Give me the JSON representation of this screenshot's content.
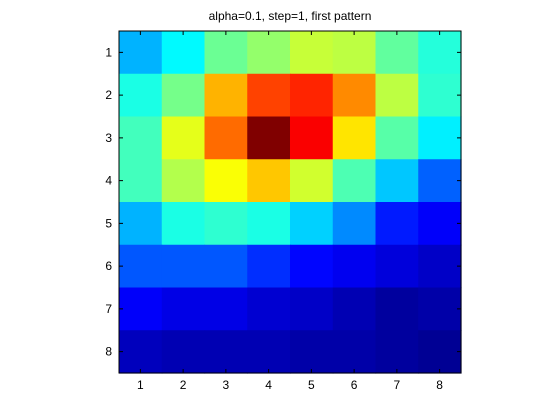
{
  "chart_data": {
    "type": "heatmap",
    "title": "alpha=0.1, step=1, first pattern",
    "xlabel": "",
    "ylabel": "",
    "x_categories": [
      "1",
      "2",
      "3",
      "4",
      "5",
      "6",
      "7",
      "8"
    ],
    "y_categories": [
      "1",
      "2",
      "3",
      "4",
      "5",
      "6",
      "7",
      "8"
    ],
    "colormap": "jet",
    "value_range": [
      0,
      1
    ],
    "grid": false,
    "values": [
      [
        0.3,
        0.37,
        0.48,
        0.52,
        0.57,
        0.56,
        0.47,
        0.41
      ],
      [
        0.4,
        0.49,
        0.7,
        0.81,
        0.84,
        0.74,
        0.56,
        0.42
      ],
      [
        0.44,
        0.6,
        0.77,
        1.0,
        0.88,
        0.65,
        0.46,
        0.36
      ],
      [
        0.44,
        0.55,
        0.62,
        0.68,
        0.58,
        0.45,
        0.32,
        0.22
      ],
      [
        0.3,
        0.4,
        0.42,
        0.4,
        0.33,
        0.26,
        0.15,
        0.12
      ],
      [
        0.21,
        0.21,
        0.21,
        0.17,
        0.13,
        0.11,
        0.09,
        0.07
      ],
      [
        0.12,
        0.1,
        0.1,
        0.08,
        0.07,
        0.05,
        0.03,
        0.04
      ],
      [
        0.06,
        0.05,
        0.05,
        0.05,
        0.04,
        0.04,
        0.03,
        0.02
      ]
    ]
  }
}
